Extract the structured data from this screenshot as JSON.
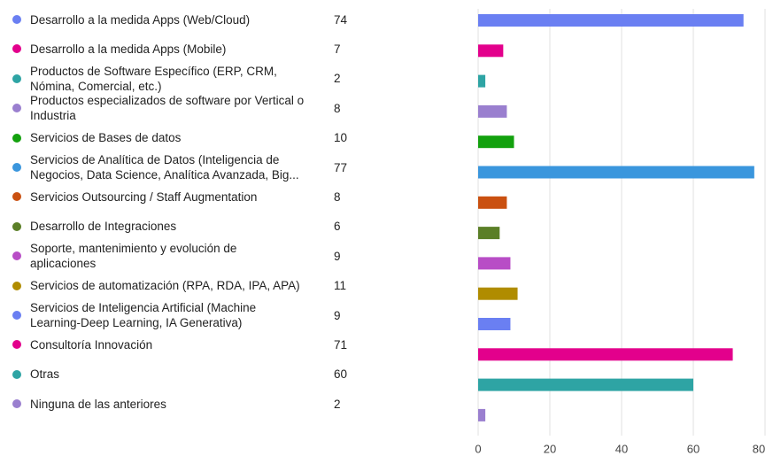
{
  "chart_data": {
    "type": "bar",
    "orientation": "horizontal",
    "categories": [
      "Desarrollo a la medida Apps (Web/Cloud)",
      "Desarrollo a la medida Apps (Mobile)",
      "Productos de Software Específico (ERP, CRM, Nómina, Comercial, etc.)",
      "Productos especializados de software por Vertical o Industria",
      "Servicios de Bases de datos",
      "Servicios de Analítica de Datos (Inteligencia de Negocios, Data Science, Analítica Avanzada, Big...",
      "Servicios Outsourcing / Staff Augmentation",
      "Desarrollo de Integraciones",
      "Soporte, mantenimiento y evolución de aplicaciones",
      "Servicios de automatización (RPA, RDA, IPA, APA)",
      "Servicios de Inteligencia Artificial (Machine Learning-Deep Learning, IA Generativa)",
      "Consultoría Innovación",
      "Otras",
      "Ninguna de las anteriores"
    ],
    "values": [
      74,
      7,
      2,
      8,
      10,
      77,
      8,
      6,
      9,
      11,
      9,
      71,
      60,
      2
    ],
    "colors": [
      "#6a7ff2",
      "#e3008c",
      "#2ea4a4",
      "#9a7fcf",
      "#13a10e",
      "#3a96dd",
      "#ca5010",
      "#5b7f27",
      "#b84dc6",
      "#b08c00",
      "#6a7ff2",
      "#e3008c",
      "#2ea4a4",
      "#9a7fcf"
    ],
    "xlim": [
      0,
      80
    ],
    "xticks": [
      0,
      20,
      40,
      60,
      80
    ],
    "grid": true
  }
}
